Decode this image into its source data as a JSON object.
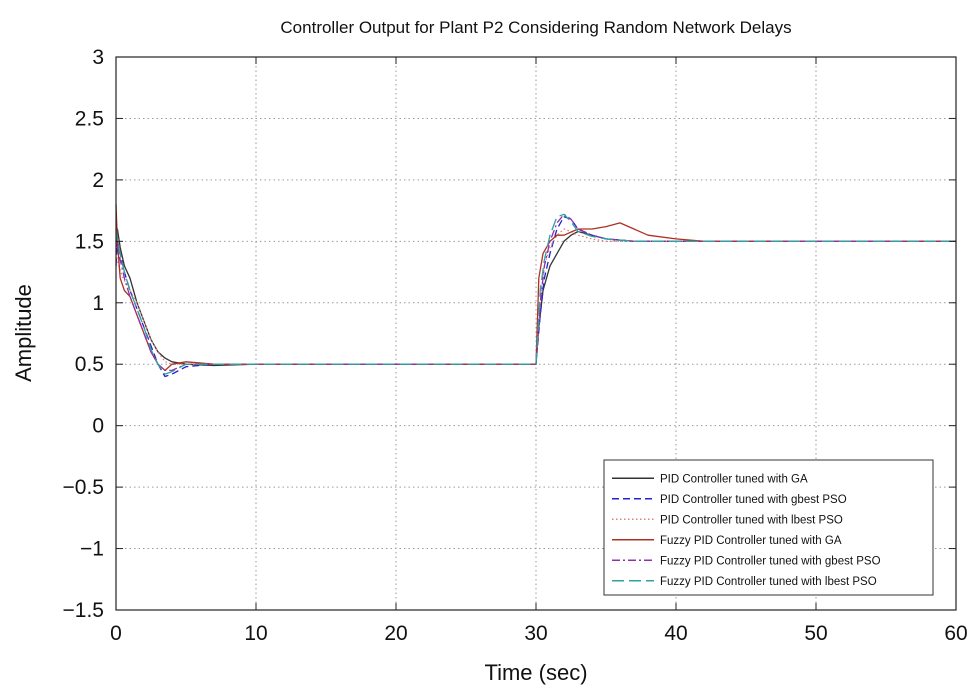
{
  "chart_data": {
    "type": "line",
    "title": "Controller Output for Plant P2 Considering Random Network Delays",
    "xlabel": "Time (sec)",
    "ylabel": "Amplitude",
    "xlim": [
      0,
      60
    ],
    "ylim": [
      -1.5,
      3
    ],
    "xticks": [
      0,
      10,
      20,
      30,
      40,
      50,
      60
    ],
    "yticks": [
      3,
      2.5,
      2,
      1.5,
      1,
      0.5,
      0,
      -0.5,
      -1,
      -1.5
    ],
    "ytick_labels": [
      "3",
      "2.5",
      "2",
      "1.5",
      "1",
      "0.5",
      "0",
      "−0.5",
      "−1",
      "−1.5"
    ],
    "grid": true,
    "legend_position": "bottom-right",
    "series": [
      {
        "name": "PID Controller tuned with GA",
        "color": "#333333",
        "dash": "solid",
        "x": [
          0,
          0.1,
          0.3,
          0.6,
          1.0,
          1.5,
          2.0,
          2.5,
          3.0,
          3.5,
          4.0,
          5.0,
          7.0,
          10.0,
          15.0,
          20.0,
          29.99,
          30.0,
          30.2,
          30.5,
          31.0,
          31.5,
          32.0,
          32.5,
          33.0,
          34.0,
          35.0,
          37.0,
          40.0,
          45.0,
          50.0,
          60.0
        ],
        "y": [
          1.5,
          1.6,
          1.45,
          1.3,
          1.2,
          1.0,
          0.85,
          0.7,
          0.6,
          0.55,
          0.52,
          0.5,
          0.49,
          0.5,
          0.5,
          0.5,
          0.5,
          0.5,
          0.8,
          1.1,
          1.3,
          1.4,
          1.5,
          1.55,
          1.58,
          1.55,
          1.52,
          1.5,
          1.5,
          1.5,
          1.5,
          1.5
        ]
      },
      {
        "name": "PID Controller tuned with gbest PSO",
        "color": "#2222cc",
        "dash": "dashed",
        "x": [
          0,
          0.1,
          0.3,
          0.6,
          1.0,
          1.5,
          2.0,
          2.5,
          3.0,
          3.5,
          4.0,
          5.0,
          7.0,
          10.0,
          20.0,
          29.99,
          30.0,
          30.3,
          30.6,
          31.0,
          31.5,
          32.0,
          32.5,
          33.0,
          34.0,
          35.0,
          37.0,
          40.0,
          45.0,
          60.0
        ],
        "y": [
          1.3,
          1.5,
          1.4,
          1.25,
          1.1,
          0.95,
          0.8,
          0.65,
          0.5,
          0.4,
          0.42,
          0.48,
          0.5,
          0.5,
          0.5,
          0.5,
          0.5,
          0.9,
          1.2,
          1.4,
          1.6,
          1.7,
          1.68,
          1.6,
          1.55,
          1.52,
          1.5,
          1.5,
          1.5,
          1.5
        ]
      },
      {
        "name": "PID Controller tuned with lbest PSO",
        "color": "#e08080",
        "dash": "dotted",
        "x": [
          0,
          0.2,
          0.5,
          1.0,
          1.5,
          2.0,
          2.5,
          3.0,
          3.5,
          4.0,
          5.0,
          7.0,
          10.0,
          20.0,
          29.99,
          30.0,
          30.3,
          30.6,
          31.0,
          31.5,
          32.0,
          32.5,
          33.0,
          34.0,
          35.0,
          37.0,
          40.0,
          60.0
        ],
        "y": [
          1.4,
          1.3,
          1.2,
          1.1,
          1.0,
          0.85,
          0.7,
          0.6,
          0.52,
          0.5,
          0.5,
          0.5,
          0.5,
          0.5,
          0.5,
          0.5,
          1.0,
          1.3,
          1.45,
          1.55,
          1.6,
          1.58,
          1.55,
          1.52,
          1.5,
          1.5,
          1.5,
          1.5
        ]
      },
      {
        "name": "Fuzzy PID Controller tuned with GA",
        "color": "#b03020",
        "dash": "solid",
        "x": [
          0,
          0.1,
          0.3,
          0.6,
          1.0,
          1.5,
          2.0,
          2.5,
          3.0,
          3.5,
          4.0,
          5.0,
          7.0,
          10.0,
          15.0,
          20.0,
          29.99,
          30.0,
          30.2,
          30.5,
          31.0,
          31.5,
          32.0,
          33.0,
          34.0,
          35.0,
          36.0,
          37.0,
          38.0,
          40.0,
          42.0,
          45.0,
          50.0,
          60.0
        ],
        "y": [
          1.8,
          1.5,
          1.2,
          1.1,
          1.05,
          0.9,
          0.75,
          0.6,
          0.5,
          0.45,
          0.5,
          0.52,
          0.5,
          0.5,
          0.5,
          0.5,
          0.5,
          0.5,
          1.2,
          1.4,
          1.5,
          1.55,
          1.55,
          1.6,
          1.6,
          1.62,
          1.65,
          1.6,
          1.55,
          1.52,
          1.5,
          1.5,
          1.5,
          1.5
        ]
      },
      {
        "name": "Fuzzy PID Controller tuned with gbest PSO",
        "color": "#9030b0",
        "dash": "dashdot",
        "x": [
          0,
          0.1,
          0.3,
          0.6,
          1.0,
          1.5,
          2.0,
          2.5,
          3.0,
          3.5,
          4.0,
          5.0,
          7.0,
          10.0,
          20.0,
          29.99,
          30.0,
          30.3,
          30.6,
          31.0,
          31.5,
          32.0,
          32.5,
          33.0,
          34.0,
          35.0,
          37.0,
          40.0,
          60.0
        ],
        "y": [
          1.5,
          1.45,
          1.35,
          1.2,
          1.05,
          0.9,
          0.75,
          0.6,
          0.5,
          0.45,
          0.45,
          0.5,
          0.5,
          0.5,
          0.5,
          0.5,
          0.5,
          1.0,
          1.3,
          1.5,
          1.65,
          1.72,
          1.68,
          1.6,
          1.55,
          1.52,
          1.5,
          1.5,
          1.5
        ]
      },
      {
        "name": "Fuzzy PID Controller tuned with lbest PSO",
        "color": "#30a0a0",
        "dash": "longdash",
        "x": [
          0,
          0.1,
          0.3,
          0.6,
          1.0,
          1.5,
          2.0,
          2.5,
          3.0,
          3.5,
          4.0,
          5.0,
          7.0,
          10.0,
          20.0,
          29.99,
          30.0,
          30.3,
          30.6,
          31.0,
          31.5,
          32.0,
          32.5,
          33.0,
          34.0,
          35.0,
          37.0,
          40.0,
          60.0
        ],
        "y": [
          1.6,
          1.5,
          1.4,
          1.25,
          1.1,
          0.95,
          0.8,
          0.62,
          0.5,
          0.42,
          0.44,
          0.5,
          0.5,
          0.5,
          0.5,
          0.5,
          0.5,
          1.1,
          1.35,
          1.55,
          1.7,
          1.72,
          1.66,
          1.58,
          1.54,
          1.52,
          1.5,
          1.5,
          1.5
        ]
      }
    ]
  }
}
